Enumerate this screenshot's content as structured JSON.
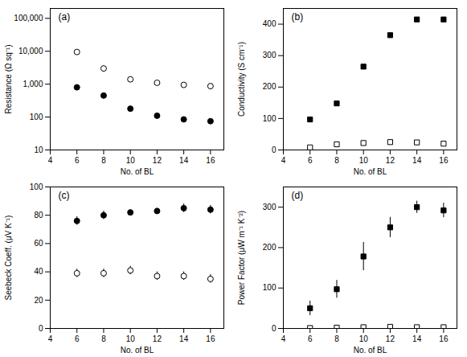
{
  "chart_data": [
    {
      "type": "scatter",
      "title": "(a)",
      "x_label": "No. of BL",
      "y_label": "Resistance (Ω sq⁻¹)",
      "x": [
        6,
        8,
        10,
        12,
        14,
        16
      ],
      "series": [
        {
          "values": [
            9500,
            3000,
            1400,
            1100,
            950,
            870
          ],
          "color": "black",
          "marker": "open_circle"
        },
        {
          "values": [
            800,
            450,
            180,
            110,
            85,
            75
          ],
          "color": "black",
          "marker": "circle"
        }
      ],
      "log": "y",
      "grid": false,
      "xlim": [
        4,
        17
      ],
      "xticks": [
        4,
        6,
        8,
        10,
        12,
        14,
        16
      ],
      "ylim": [
        10,
        200000
      ],
      "yticks": [
        10,
        100,
        {
          "value": 1000,
          "label": "1,000"
        },
        {
          "value": 10000,
          "label": "10,000"
        },
        {
          "value": 100000,
          "label": "100,000"
        }
      ]
    },
    {
      "type": "scatter",
      "title": "(b)",
      "x_label": "No. of BL",
      "y_label": "Conductivity (S cm⁻¹)",
      "x": [
        6,
        8,
        10,
        12,
        14,
        16
      ],
      "series": [
        {
          "values": [
            97,
            148,
            265,
            365,
            415,
            415
          ],
          "color": "black",
          "marker": "square"
        },
        {
          "values": [
            8,
            18,
            22,
            25,
            24,
            20
          ],
          "color": "black",
          "marker": "open_square"
        }
      ],
      "grid": false,
      "xlim": [
        4,
        17
      ],
      "xticks": [
        4,
        6,
        8,
        10,
        12,
        14,
        16
      ],
      "ylim": [
        0,
        450
      ],
      "yticks": [
        0,
        100,
        200,
        300,
        400
      ]
    },
    {
      "type": "scatter",
      "title": "(c)",
      "x_label": "No. of BL",
      "y_label": "Seebeck Coeff. (μV K⁻¹)",
      "x": [
        6,
        8,
        10,
        12,
        14,
        16
      ],
      "series": [
        {
          "values": [
            76,
            80,
            82,
            83,
            85,
            84
          ],
          "errors": [
            3,
            3,
            2,
            2,
            3,
            3
          ],
          "color": "black",
          "marker": "circle"
        },
        {
          "values": [
            39,
            39,
            41,
            37,
            37,
            35
          ],
          "errors": [
            3,
            3,
            3,
            3,
            3,
            3
          ],
          "color": "black",
          "marker": "open_circle"
        }
      ],
      "grid": false,
      "xlim": [
        4,
        17
      ],
      "xticks": [
        4,
        6,
        8,
        10,
        12,
        14,
        16
      ],
      "ylim": [
        0,
        100
      ],
      "yticks": [
        0,
        20,
        40,
        60,
        80,
        100
      ]
    },
    {
      "type": "scatter",
      "title": "(d)",
      "x_label": "No. of BL",
      "y_label": "Power Factor (μW m⁻¹ K⁻²)",
      "x": [
        6,
        8,
        10,
        12,
        14,
        16
      ],
      "series": [
        {
          "values": [
            50,
            97,
            178,
            250,
            300,
            292
          ],
          "errors": [
            18,
            22,
            35,
            25,
            15,
            18
          ],
          "color": "black",
          "marker": "square"
        },
        {
          "values": [
            1,
            2,
            3,
            4,
            3,
            3
          ],
          "errors": [
            0.5,
            0.5,
            1,
            1,
            1,
            1
          ],
          "color": "black",
          "marker": "open_square"
        }
      ],
      "grid": false,
      "xlim": [
        4,
        17
      ],
      "xticks": [
        4,
        6,
        8,
        10,
        12,
        14,
        16
      ],
      "ylim": [
        0,
        350
      ],
      "yticks": [
        0,
        100,
        200,
        300
      ]
    }
  ]
}
